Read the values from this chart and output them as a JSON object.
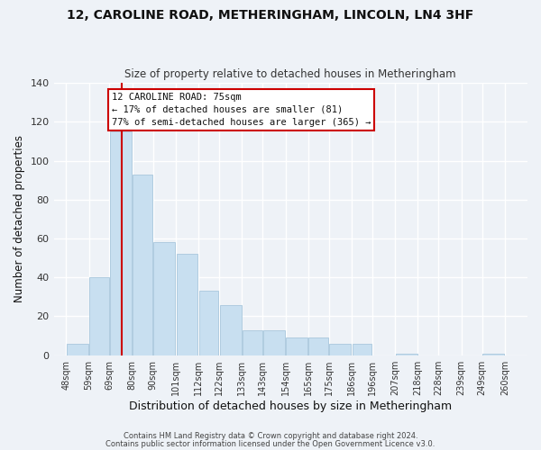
{
  "title": "12, CAROLINE ROAD, METHERINGHAM, LINCOLN, LN4 3HF",
  "subtitle": "Size of property relative to detached houses in Metheringham",
  "xlabel": "Distribution of detached houses by size in Metheringham",
  "ylabel": "Number of detached properties",
  "bar_left_edges": [
    48,
    59,
    69,
    80,
    90,
    101,
    112,
    122,
    133,
    143,
    154,
    165,
    175,
    186,
    196,
    207,
    218,
    228,
    239,
    249
  ],
  "bar_heights": [
    6,
    40,
    115,
    93,
    58,
    52,
    33,
    26,
    13,
    13,
    9,
    9,
    6,
    6,
    0,
    1,
    0,
    0,
    0,
    1
  ],
  "bar_widths": [
    11,
    10,
    11,
    10,
    11,
    11,
    10,
    11,
    10,
    11,
    11,
    10,
    11,
    10,
    11,
    11,
    10,
    11,
    10,
    11
  ],
  "bar_color": "#c8dff0",
  "bar_edgecolor": "#b0cce0",
  "vline_x": 75,
  "vline_color": "#cc0000",
  "ylim": [
    0,
    140
  ],
  "xlim": [
    42,
    271
  ],
  "xtick_labels": [
    "48sqm",
    "59sqm",
    "69sqm",
    "80sqm",
    "90sqm",
    "101sqm",
    "112sqm",
    "122sqm",
    "133sqm",
    "143sqm",
    "154sqm",
    "165sqm",
    "175sqm",
    "186sqm",
    "196sqm",
    "207sqm",
    "218sqm",
    "228sqm",
    "239sqm",
    "249sqm",
    "260sqm"
  ],
  "xtick_positions": [
    48,
    59,
    69,
    80,
    90,
    101,
    112,
    122,
    133,
    143,
    154,
    165,
    175,
    186,
    196,
    207,
    218,
    228,
    239,
    249,
    260
  ],
  "annotation_title": "12 CAROLINE ROAD: 75sqm",
  "annotation_line1": "← 17% of detached houses are smaller (81)",
  "annotation_line2": "77% of semi-detached houses are larger (365) →",
  "background_color": "#eef2f7",
  "grid_color": "#ffffff",
  "footnote1": "Contains HM Land Registry data © Crown copyright and database right 2024.",
  "footnote2": "Contains public sector information licensed under the Open Government Licence v3.0."
}
